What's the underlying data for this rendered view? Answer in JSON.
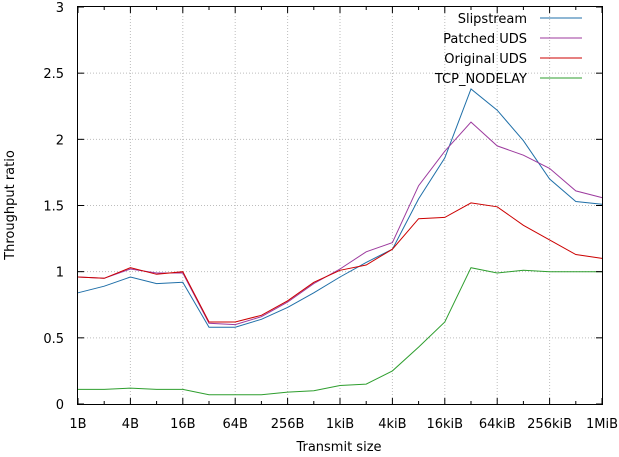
{
  "chart_data": {
    "type": "line",
    "xlabel": "Transmit size",
    "ylabel": "Throughput ratio",
    "x_tick_labels": [
      "1B",
      "4B",
      "16B",
      "64B",
      "256B",
      "1kiB",
      "4kiB",
      "16kiB",
      "64kiB",
      "256kiB",
      "1MiB"
    ],
    "x_scale": "log2",
    "x_range_bytes": [
      1,
      1048576
    ],
    "ylim": [
      0,
      3
    ],
    "y_ticks": [
      "0",
      "0.5",
      "1",
      "1.5",
      "2",
      "2.5",
      "3"
    ],
    "grid": true,
    "legend_position": "top-right",
    "x_bytes": [
      1,
      2,
      4,
      8,
      16,
      32,
      64,
      128,
      256,
      512,
      1024,
      2048,
      4096,
      8192,
      16384,
      32768,
      65536,
      131072,
      262144,
      524288,
      1048576
    ],
    "series": [
      {
        "name": "Slipstream",
        "color": "#1f6fa8",
        "values": [
          0.84,
          0.89,
          0.96,
          0.91,
          0.92,
          0.58,
          0.58,
          0.64,
          0.73,
          0.84,
          0.96,
          1.07,
          1.17,
          1.55,
          1.86,
          2.38,
          2.22,
          1.99,
          1.7,
          1.53,
          1.51
        ]
      },
      {
        "name": "Patched UDS",
        "color": "#9c3a9e",
        "values": [
          0.96,
          0.95,
          1.02,
          0.99,
          0.99,
          0.61,
          0.6,
          0.66,
          0.77,
          0.91,
          1.02,
          1.15,
          1.22,
          1.65,
          1.91,
          2.13,
          1.95,
          1.88,
          1.78,
          1.61,
          1.56
        ]
      },
      {
        "name": "Original UDS",
        "color": "#cc0000",
        "values": [
          0.96,
          0.95,
          1.03,
          0.98,
          1.0,
          0.62,
          0.62,
          0.67,
          0.78,
          0.92,
          1.01,
          1.05,
          1.17,
          1.4,
          1.41,
          1.52,
          1.49,
          1.35,
          1.24,
          1.13,
          1.1
        ]
      },
      {
        "name": "TCP_NODELAY",
        "color": "#2e9e2e",
        "values": [
          0.11,
          0.11,
          0.12,
          0.11,
          0.11,
          0.07,
          0.07,
          0.07,
          0.09,
          0.1,
          0.14,
          0.15,
          0.25,
          0.43,
          0.62,
          1.03,
          0.99,
          1.01,
          1.0,
          1.0,
          1.0
        ]
      }
    ]
  }
}
